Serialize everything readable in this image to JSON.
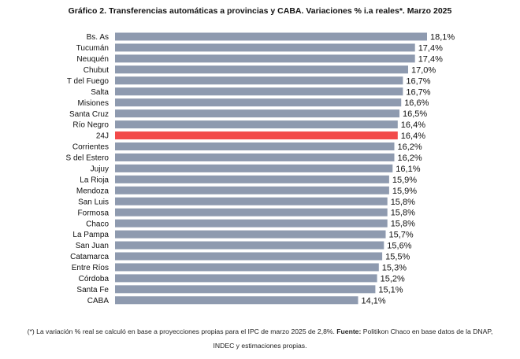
{
  "colors": {
    "bar": "#8e9aaf",
    "highlight": "#f24a4a",
    "text": "#111111"
  },
  "footnote": {
    "text_before": "(*) La variación % real se calculó en base a proyecciones propias para el IPC de marzo 2025 de 2,8%. ",
    "source_label": "Fuente:",
    "text_after": " Politikon Chaco en base datos de la DNAP, INDEC y estimaciones propias."
  },
  "chart_data": {
    "type": "bar",
    "orientation": "horizontal",
    "title": "Gráfico 2. Transferencias automáticas a provincias y CABA. Variaciones % i.a reales*. Marzo 2025",
    "xlabel": "",
    "ylabel": "",
    "grid": false,
    "legend": "none",
    "highlight_category": "24J",
    "categories": [
      "Bs. As",
      "Tucumán",
      "Neuquén",
      "Chubut",
      "T del Fuego",
      "Salta",
      "Misiones",
      "Santa Cruz",
      "Río Negro",
      "24J",
      "Corrientes",
      "S del Estero",
      "Jujuy",
      "La Rioja",
      "Mendoza",
      "San Luis",
      "Formosa",
      "Chaco",
      "La Pampa",
      "San Juan",
      "Catamarca",
      "Entre Ríos",
      "Córdoba",
      "Santa Fe",
      "CABA"
    ],
    "values": [
      18.1,
      17.4,
      17.4,
      17.0,
      16.7,
      16.7,
      16.6,
      16.5,
      16.4,
      16.4,
      16.2,
      16.2,
      16.1,
      15.9,
      15.9,
      15.8,
      15.8,
      15.8,
      15.7,
      15.6,
      15.5,
      15.3,
      15.2,
      15.1,
      14.1
    ],
    "value_labels": [
      "18,1%",
      "17,4%",
      "17,4%",
      "17,0%",
      "16,7%",
      "16,7%",
      "16,6%",
      "16,5%",
      "16,4%",
      "16,4%",
      "16,2%",
      "16,2%",
      "16,1%",
      "15,9%",
      "15,9%",
      "15,8%",
      "15,8%",
      "15,8%",
      "15,7%",
      "15,6%",
      "15,5%",
      "15,3%",
      "15,2%",
      "15,1%",
      "14,1%"
    ]
  }
}
